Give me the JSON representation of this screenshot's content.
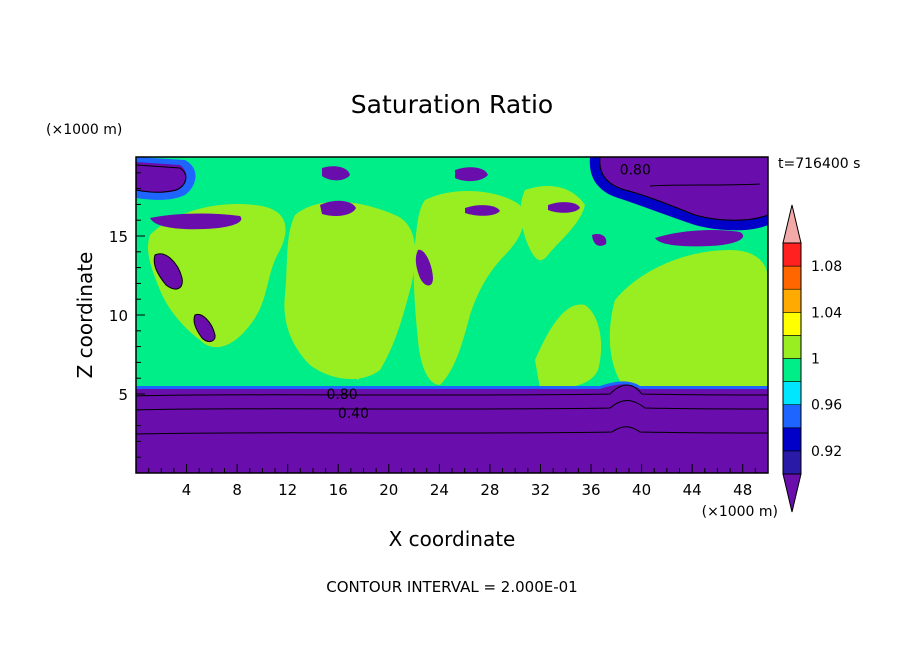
{
  "chart_data": {
    "type": "heatmap",
    "title": "Saturation Ratio",
    "xlabel": "X coordinate",
    "ylabel": "Z coordinate",
    "x_unit": "(×1000 m)",
    "y_unit": "(×1000 m)",
    "time_label": "t=716400 s",
    "footer": "CONTOUR INTERVAL = 2.000E-01",
    "xlim": [
      0,
      50
    ],
    "ylim": [
      0,
      20
    ],
    "x_ticks": [
      "4",
      "8",
      "12",
      "16",
      "20",
      "24",
      "28",
      "32",
      "36",
      "40",
      "44",
      "48"
    ],
    "x_tick_values": [
      4,
      8,
      12,
      16,
      20,
      24,
      28,
      32,
      36,
      40,
      44,
      48
    ],
    "y_ticks": [
      "5",
      "10",
      "15"
    ],
    "y_tick_values": [
      5,
      10,
      15
    ],
    "colorbar": {
      "levels": [
        0.9,
        0.92,
        0.94,
        0.96,
        0.98,
        1.0,
        1.02,
        1.04,
        1.06,
        1.08,
        1.1
      ],
      "labels": [
        "0.92",
        "0.96",
        "1",
        "1.04",
        "1.08"
      ],
      "label_values": [
        0.92,
        0.96,
        1.0,
        1.04,
        1.08
      ],
      "colors": [
        "#6a0dad",
        "#2a1aa8",
        "#0000c8",
        "#1e64ff",
        "#00e6ff",
        "#00ee88",
        "#99ee22",
        "#ffff00",
        "#ffaa00",
        "#ff6600",
        "#ff2020",
        "#f4a9a9"
      ],
      "under_color": "#6a0dad",
      "over_color": "#f4a9a9"
    },
    "regions": [
      {
        "name": "lower dry layer",
        "value_range": [
          0.0,
          0.9
        ],
        "x": [
          0,
          50
        ],
        "z": [
          0,
          5.3
        ]
      },
      {
        "name": "near-saturated band",
        "value_range": [
          0.98,
          1.0
        ],
        "x": [
          0,
          50
        ],
        "z": [
          5.3,
          20
        ]
      },
      {
        "name": "slightly supersaturated patches",
        "value_range": [
          1.0,
          1.02
        ],
        "x": [
          0,
          50
        ],
        "z": [
          6,
          18
        ]
      },
      {
        "name": "dry patch upper right",
        "value_range": [
          0.0,
          0.9
        ],
        "x": [
          36,
          50
        ],
        "z": [
          16,
          20
        ]
      }
    ],
    "contour_labels": [
      {
        "text": "0.80",
        "x": 16.3,
        "z": 5.0
      },
      {
        "text": "0.40",
        "x": 17.2,
        "z": 3.8
      },
      {
        "text": "0.80",
        "x": 39.5,
        "z": 19.2
      }
    ]
  }
}
